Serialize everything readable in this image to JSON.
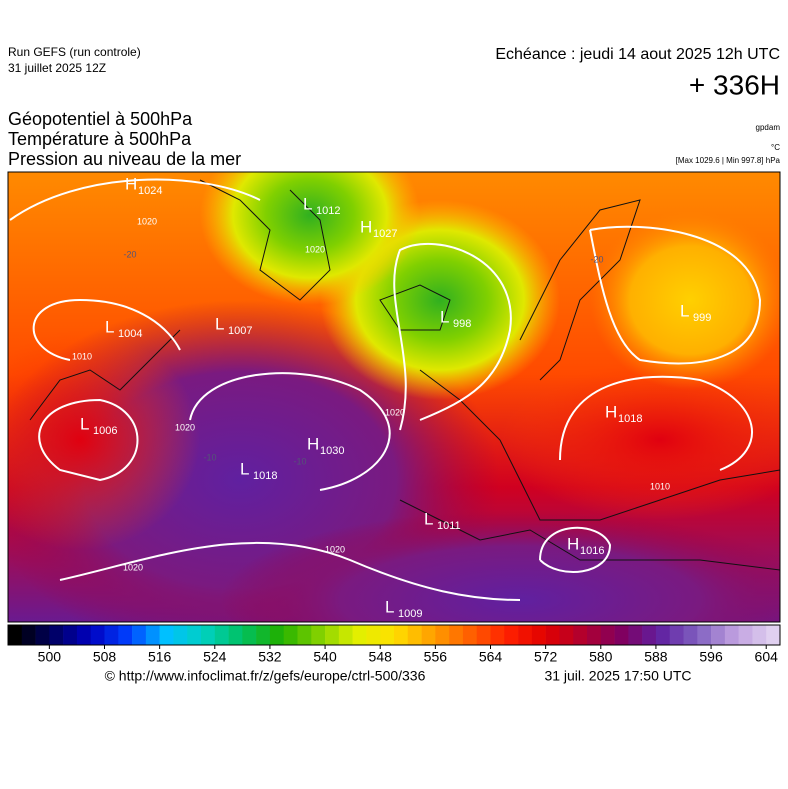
{
  "header": {
    "run": "Run GEFS (run controle)",
    "run_date": "31 juillet 2025 12Z",
    "valid": "Echéance : jeudi 14 aout 2025 12h UTC",
    "lead": "+ 336H"
  },
  "titles": [
    "Géopotentiel à 500hPa",
    "Température à 500hPa",
    "Pression au niveau de la mer"
  ],
  "units": {
    "geopotential": "gpdam",
    "temperature": "°C",
    "pressure": "[Max 1029.6 | Min 997.8] hPa"
  },
  "centers": [
    {
      "letter": "H",
      "value": 1024
    },
    {
      "letter": "L",
      "value": 1012
    },
    {
      "letter": "H",
      "value": 1027
    },
    {
      "letter": "L",
      "value": 998
    },
    {
      "letter": "L",
      "value": 1004
    },
    {
      "letter": "L",
      "value": 1007
    },
    {
      "letter": "L",
      "value": 999
    },
    {
      "letter": "L",
      "value": 1006
    },
    {
      "letter": "H",
      "value": 1030
    },
    {
      "letter": "L",
      "value": 1018
    },
    {
      "letter": "H",
      "value": 1018
    },
    {
      "letter": "L",
      "value": 1011
    },
    {
      "letter": "H",
      "value": 1016
    },
    {
      "letter": "L",
      "value": 1009
    }
  ],
  "isobar_labels": [
    1020,
    1010,
    1020,
    1020,
    1010,
    1020,
    1020,
    1020
  ],
  "temperature_labels": [
    -20,
    -20,
    -10,
    -10
  ],
  "colorbar": {
    "lim": [
      494,
      606
    ],
    "step": 2,
    "ticks": [
      500,
      508,
      516,
      524,
      532,
      540,
      548,
      556,
      564,
      572,
      580,
      588,
      596,
      604
    ],
    "stops": [
      "#000000",
      "#000060",
      "#0000c0",
      "#0040ff",
      "#00c0ff",
      "#00d0c0",
      "#00c060",
      "#20b000",
      "#80d000",
      "#e0f000",
      "#ffe000",
      "#ffa000",
      "#ff6000",
      "#ff2000",
      "#e00000",
      "#b00030",
      "#800060",
      "#6020a0",
      "#8060c0",
      "#c0a0e0",
      "#e0d0f0"
    ]
  },
  "footer": {
    "source": "© http://www.infoclimat.fr/z/gefs/europe/ctrl-500/336",
    "generated": "31 juil. 2025 17:50 UTC"
  }
}
